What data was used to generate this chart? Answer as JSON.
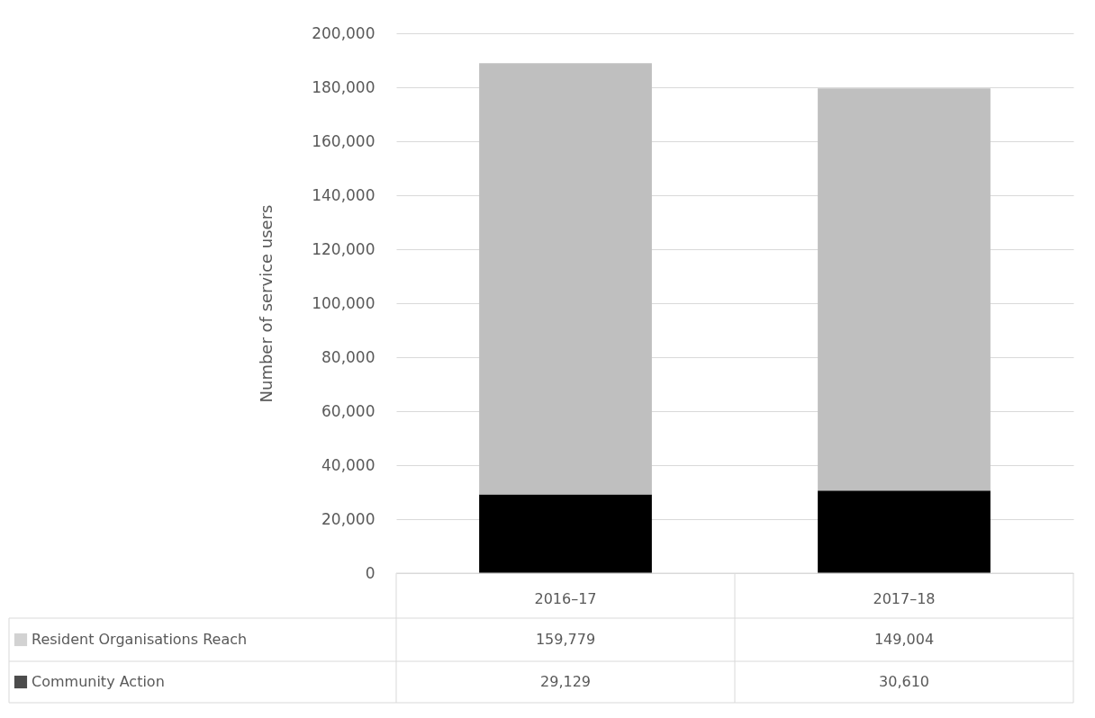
{
  "chart_data": {
    "type": "bar",
    "stacked": true,
    "ylabel": "Number of service users",
    "categories": [
      "2016–17",
      "2017–18"
    ],
    "series": [
      {
        "name": "Community Action",
        "color": "#000000",
        "values": [
          29129,
          30610
        ],
        "value_labels": [
          "29,129",
          "30,610"
        ]
      },
      {
        "name": "Resident Organisations Reach",
        "color": "#bfbfbf",
        "values": [
          159779,
          149004
        ],
        "value_labels": [
          "159,779",
          "149,004"
        ]
      }
    ],
    "ylim": [
      0,
      200000
    ],
    "yticks": [
      0,
      {
        "value": 20000,
        "label": "20,000"
      },
      {
        "value": 40000,
        "label": "40,000"
      },
      {
        "value": 60000,
        "label": "60,000"
      },
      {
        "value": 80000,
        "label": "80,000"
      },
      {
        "value": 100000,
        "label": "100,000"
      },
      {
        "value": 120000,
        "label": "120,000"
      },
      {
        "value": 140000,
        "label": "140,000"
      },
      {
        "value": 160000,
        "label": "160,000"
      },
      {
        "value": 180000,
        "label": "180,000"
      },
      {
        "value": 200000,
        "label": "200,000"
      }
    ],
    "grid": "y",
    "legend": "bottom"
  }
}
